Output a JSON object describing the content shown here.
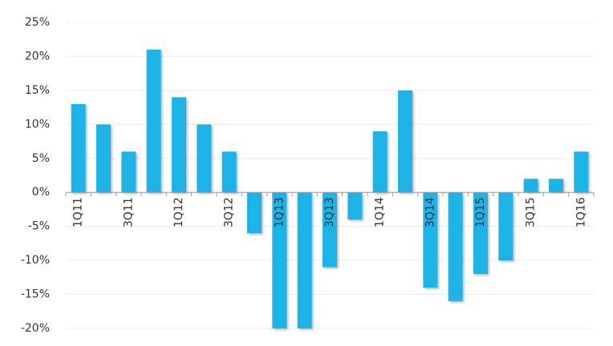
{
  "chart_data": {
    "type": "bar",
    "categories": [
      "1Q11",
      null,
      "3Q11",
      null,
      "1Q12",
      null,
      "3Q12",
      null,
      "1Q13",
      null,
      "3Q13",
      null,
      "1Q14",
      null,
      "3Q14",
      null,
      "1Q15",
      null,
      "3Q15",
      null,
      "1Q16"
    ],
    "values": [
      13,
      10,
      6,
      21,
      14,
      10,
      6,
      -6,
      -20,
      -20,
      -11,
      -4,
      9,
      15,
      -14,
      -16,
      -12,
      -10,
      2,
      2,
      6
    ],
    "color": "#1ab3e8",
    "ylim": [
      -20,
      25
    ],
    "yticks": [
      {
        "value": -20,
        "label": "-20%"
      },
      {
        "value": -15,
        "label": "-15%"
      },
      {
        "value": -10,
        "label": "-10%"
      },
      {
        "value": -5,
        "label": "-5%"
      },
      {
        "value": 0,
        "label": "0%"
      },
      {
        "value": 5,
        "label": "5%"
      },
      {
        "value": 10,
        "label": "10%"
      },
      {
        "value": 15,
        "label": "15%"
      },
      {
        "value": 20,
        "label": "20%"
      },
      {
        "value": 25,
        "label": "25%"
      }
    ],
    "grid": true
  }
}
